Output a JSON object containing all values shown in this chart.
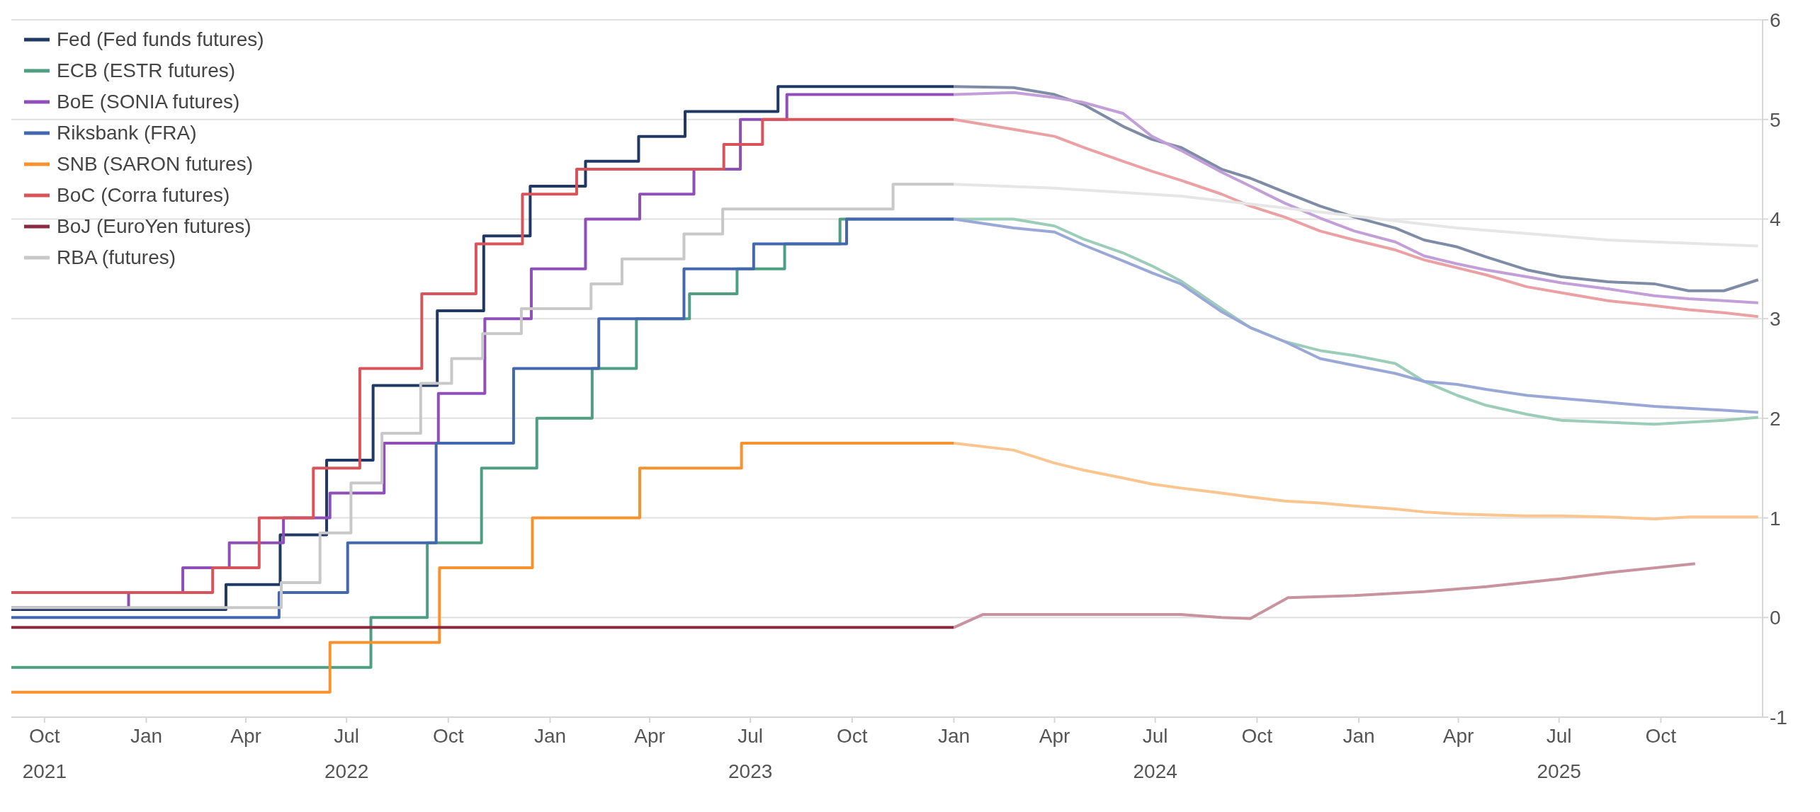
{
  "chart_data": {
    "type": "step",
    "xlim": [
      "2021-09-01",
      "2026-01-01"
    ],
    "xticks": [
      {
        "value": "2021-10-01",
        "label": "Oct\n2021"
      },
      {
        "value": "2022-01-01",
        "label": "Jan"
      },
      {
        "value": "2022-04-01",
        "label": "Apr"
      },
      {
        "value": "2022-07-01",
        "label": "Jul\n2022"
      },
      {
        "value": "2022-10-01",
        "label": "Oct"
      },
      {
        "value": "2023-01-01",
        "label": "Jan"
      },
      {
        "value": "2023-04-01",
        "label": "Apr"
      },
      {
        "value": "2023-07-01",
        "label": "Jul\n2023"
      },
      {
        "value": "2023-10-01",
        "label": "Oct"
      },
      {
        "value": "2024-01-01",
        "label": "Jan"
      },
      {
        "value": "2024-04-01",
        "label": "Apr"
      },
      {
        "value": "2024-07-01",
        "label": "Jul\n2024"
      },
      {
        "value": "2024-10-01",
        "label": "Oct"
      },
      {
        "value": "2025-01-01",
        "label": "Jan"
      },
      {
        "value": "2025-04-01",
        "label": "Apr"
      },
      {
        "value": "2025-07-01",
        "label": "Jul\n2025"
      },
      {
        "value": "2025-10-01",
        "label": "Oct"
      }
    ],
    "ylim": [
      -1,
      6
    ],
    "yticks": [
      -1,
      0,
      1,
      2,
      3,
      4,
      5,
      6
    ],
    "grid": "y",
    "legend": "top left",
    "series": [
      {
        "name": "Fed (Fed funds futures)",
        "color": "#1f3864",
        "x": [
          "2021-09-01",
          "2022-03-14",
          "2022-05-02",
          "2022-06-13",
          "2022-07-25",
          "2022-09-21",
          "2022-11-02",
          "2022-12-14",
          "2023-02-02",
          "2023-03-22",
          "2023-05-03",
          "2023-07-26",
          "2024-01-01"
        ],
        "values": [
          0.08,
          0.33,
          0.83,
          1.58,
          2.33,
          3.08,
          3.83,
          4.33,
          4.58,
          4.83,
          5.08,
          5.33,
          5.33
        ]
      },
      {
        "name": "ECB (ESTR futures)",
        "color": "#4e9e82",
        "x": [
          "2021-09-01",
          "2022-07-23",
          "2022-09-12",
          "2022-10-31",
          "2022-12-20",
          "2023-02-08",
          "2023-03-20",
          "2023-05-07",
          "2023-06-19",
          "2023-08-01",
          "2023-09-20",
          "2024-01-01"
        ],
        "values": [
          -0.5,
          0.0,
          0.75,
          1.5,
          2.0,
          2.5,
          3.0,
          3.25,
          3.5,
          3.75,
          4.0,
          4.0
        ]
      },
      {
        "name": "BoE (SONIA futures)",
        "color": "#8e4fb8",
        "x": [
          "2021-09-01",
          "2021-12-16",
          "2022-02-03",
          "2022-03-17",
          "2022-05-05",
          "2022-06-16",
          "2022-08-04",
          "2022-09-22",
          "2022-11-03",
          "2022-12-15",
          "2023-02-02",
          "2023-03-23",
          "2023-05-11",
          "2023-06-22",
          "2023-08-03",
          "2024-01-01"
        ],
        "values": [
          0.1,
          0.25,
          0.5,
          0.75,
          1.0,
          1.25,
          1.75,
          2.25,
          3.0,
          3.5,
          4.0,
          4.25,
          4.5,
          5.0,
          5.25,
          5.25
        ]
      },
      {
        "name": "Riksbank (FRA)",
        "color": "#4468b0",
        "x": [
          "2021-09-01",
          "2022-05-01",
          "2022-07-02",
          "2022-09-20",
          "2022-11-29",
          "2023-02-14",
          "2023-05-02",
          "2023-07-04",
          "2023-09-26",
          "2024-01-01"
        ],
        "values": [
          0.0,
          0.25,
          0.75,
          1.75,
          2.5,
          3.0,
          3.5,
          3.75,
          4.0,
          4.0
        ]
      },
      {
        "name": "SNB (SARON futures)",
        "color": "#f7922e",
        "x": [
          "2021-09-01",
          "2022-06-16",
          "2022-09-23",
          "2022-12-16",
          "2023-03-23",
          "2023-06-23",
          "2024-01-01"
        ],
        "values": [
          -0.75,
          -0.25,
          0.5,
          1.0,
          1.5,
          1.75,
          1.75
        ]
      },
      {
        "name": "BoC (Corra futures)",
        "color": "#d9545a",
        "x": [
          "2021-09-01",
          "2022-03-02",
          "2022-04-13",
          "2022-06-01",
          "2022-07-13",
          "2022-09-07",
          "2022-10-26",
          "2022-12-07",
          "2023-01-25",
          "2023-06-07",
          "2023-07-12",
          "2024-01-01"
        ],
        "values": [
          0.25,
          0.5,
          1.0,
          1.5,
          2.5,
          3.25,
          3.75,
          4.25,
          4.5,
          4.75,
          5.0,
          5.0
        ]
      },
      {
        "name": "BoJ (EuroYen futures)",
        "color": "#8b2b3f",
        "x": [
          "2021-09-01",
          "2024-01-01"
        ],
        "values": [
          -0.1,
          -0.1
        ]
      },
      {
        "name": "RBA (futures)",
        "color": "#c8c8c8",
        "x": [
          "2021-09-01",
          "2022-05-03",
          "2022-06-07",
          "2022-07-05",
          "2022-08-02",
          "2022-09-06",
          "2022-10-04",
          "2022-11-01",
          "2022-12-06",
          "2023-02-07",
          "2023-03-07",
          "2023-05-02",
          "2023-06-06",
          "2023-11-07",
          "2024-01-01"
        ],
        "values": [
          0.1,
          0.35,
          0.85,
          1.35,
          1.85,
          2.35,
          2.6,
          2.85,
          3.1,
          3.35,
          3.6,
          3.85,
          4.1,
          4.35,
          4.35
        ]
      },
      {
        "type": "line",
        "color": "#7f8ca5",
        "x": [
          "2024-01-01",
          "2024-02-24",
          "2024-04-01",
          "2024-04-27",
          "2024-06-02",
          "2024-06-28",
          "2024-07-24",
          "2024-08-30",
          "2024-09-25",
          "2024-10-26",
          "2024-11-27",
          "2024-12-28",
          "2025-02-03",
          "2025-03-01",
          "2025-03-31",
          "2025-04-26",
          "2025-06-02",
          "2025-07-03",
          "2025-08-14",
          "2025-09-25",
          "2025-10-26",
          "2025-11-27",
          "2025-12-28"
        ],
        "values": [
          5.33,
          5.32,
          5.25,
          5.15,
          4.93,
          4.8,
          4.72,
          4.5,
          4.41,
          4.27,
          4.13,
          4.02,
          3.91,
          3.79,
          3.72,
          3.62,
          3.49,
          3.42,
          3.37,
          3.35,
          3.28,
          3.28,
          3.39
        ]
      },
      {
        "type": "line",
        "color": "#9ccdb9",
        "x": [
          "2024-01-01",
          "2024-02-24",
          "2024-04-01",
          "2024-04-27",
          "2024-06-02",
          "2024-06-28",
          "2024-07-24",
          "2024-08-30",
          "2024-09-25",
          "2024-10-26",
          "2024-11-27",
          "2024-12-28",
          "2025-02-03",
          "2025-03-01",
          "2025-03-31",
          "2025-04-26",
          "2025-06-02",
          "2025-07-03",
          "2025-08-14",
          "2025-09-25",
          "2025-10-26",
          "2025-11-27",
          "2025-12-28"
        ],
        "values": [
          4.0,
          4.0,
          3.93,
          3.8,
          3.66,
          3.53,
          3.38,
          3.1,
          2.91,
          2.77,
          2.68,
          2.63,
          2.55,
          2.37,
          2.23,
          2.13,
          2.04,
          1.98,
          1.96,
          1.94,
          1.96,
          1.98,
          2.01
        ]
      },
      {
        "type": "line",
        "color": "#c29fd8",
        "x": [
          "2024-01-01",
          "2024-02-24",
          "2024-04-01",
          "2024-04-27",
          "2024-06-02",
          "2024-06-28",
          "2024-07-24",
          "2024-08-30",
          "2024-09-25",
          "2024-10-26",
          "2024-11-27",
          "2024-12-28",
          "2025-02-03",
          "2025-03-01",
          "2025-03-31",
          "2025-04-26",
          "2025-06-02",
          "2025-07-03",
          "2025-08-14",
          "2025-09-25",
          "2025-10-26",
          "2025-11-27",
          "2025-12-28"
        ],
        "values": [
          5.25,
          5.27,
          5.22,
          5.17,
          5.06,
          4.83,
          4.69,
          4.47,
          4.33,
          4.16,
          4.01,
          3.88,
          3.77,
          3.63,
          3.55,
          3.49,
          3.42,
          3.36,
          3.3,
          3.23,
          3.2,
          3.18,
          3.16
        ]
      },
      {
        "type": "line",
        "color": "#9aa8d8",
        "x": [
          "2024-01-01",
          "2024-02-24",
          "2024-04-01",
          "2024-04-27",
          "2024-06-02",
          "2024-06-28",
          "2024-07-24",
          "2024-08-30",
          "2024-09-25",
          "2024-10-26",
          "2024-11-27",
          "2024-12-28",
          "2025-02-03",
          "2025-03-01",
          "2025-03-31",
          "2025-04-26",
          "2025-06-02",
          "2025-07-03",
          "2025-08-14",
          "2025-09-25",
          "2025-10-26",
          "2025-11-27",
          "2025-12-28"
        ],
        "values": [
          4.0,
          3.91,
          3.87,
          3.74,
          3.58,
          3.46,
          3.35,
          3.07,
          2.91,
          2.77,
          2.6,
          2.53,
          2.45,
          2.37,
          2.34,
          2.29,
          2.23,
          2.2,
          2.16,
          2.12,
          2.1,
          2.08,
          2.06
        ]
      },
      {
        "type": "line",
        "color": "#fbc58f",
        "x": [
          "2024-01-01",
          "2024-02-24",
          "2024-04-01",
          "2024-04-27",
          "2024-06-02",
          "2024-06-28",
          "2024-07-24",
          "2024-08-30",
          "2024-09-25",
          "2024-10-26",
          "2024-11-27",
          "2024-12-28",
          "2025-02-03",
          "2025-03-01",
          "2025-03-31",
          "2025-04-26",
          "2025-06-02",
          "2025-07-03",
          "2025-08-14",
          "2025-09-25",
          "2025-10-26",
          "2025-11-27",
          "2025-12-28"
        ],
        "values": [
          1.75,
          1.68,
          1.55,
          1.48,
          1.4,
          1.34,
          1.3,
          1.25,
          1.21,
          1.17,
          1.15,
          1.12,
          1.09,
          1.06,
          1.04,
          1.03,
          1.02,
          1.02,
          1.01,
          0.99,
          1.01,
          1.01,
          1.01
        ]
      },
      {
        "type": "line",
        "color": "#eba0a3",
        "x": [
          "2024-01-01",
          "2024-02-24",
          "2024-04-01",
          "2024-04-27",
          "2024-06-02",
          "2024-06-28",
          "2024-07-24",
          "2024-08-30",
          "2024-09-25",
          "2024-10-26",
          "2024-11-27",
          "2024-12-28",
          "2025-02-03",
          "2025-03-01",
          "2025-03-31",
          "2025-04-26",
          "2025-06-02",
          "2025-07-03",
          "2025-08-14",
          "2025-09-25",
          "2025-10-26",
          "2025-11-27",
          "2025-12-28"
        ],
        "values": [
          5.0,
          4.9,
          4.83,
          4.72,
          4.58,
          4.48,
          4.39,
          4.25,
          4.13,
          4.02,
          3.88,
          3.79,
          3.69,
          3.59,
          3.51,
          3.44,
          3.32,
          3.26,
          3.18,
          3.13,
          3.09,
          3.06,
          3.02
        ]
      },
      {
        "type": "line",
        "color": "#c9929f",
        "x": [
          "2024-01-01",
          "2024-01-27",
          "2024-07-24",
          "2024-08-30",
          "2024-09-25",
          "2024-10-29",
          "2024-12-28",
          "2025-03-01",
          "2025-04-26",
          "2025-07-03",
          "2025-08-14",
          "2025-11-01"
        ],
        "values": [
          -0.1,
          0.03,
          0.03,
          0.0,
          -0.01,
          0.2,
          0.22,
          0.26,
          0.31,
          0.39,
          0.45,
          0.54
        ]
      },
      {
        "type": "line",
        "color": "#e6e6e6",
        "x": [
          "2024-01-01",
          "2024-04-01",
          "2024-07-24",
          "2024-11-27",
          "2025-03-31",
          "2025-08-14",
          "2025-12-28"
        ],
        "values": [
          4.35,
          4.31,
          4.23,
          4.07,
          3.91,
          3.79,
          3.73
        ]
      }
    ]
  }
}
